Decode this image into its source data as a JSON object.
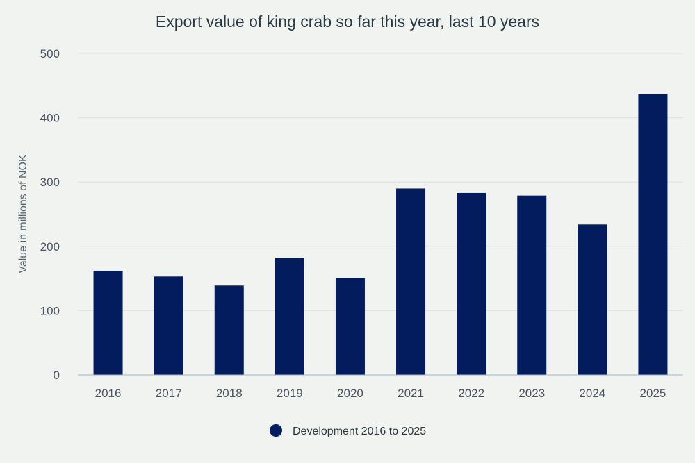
{
  "chart_data": {
    "type": "bar",
    "title": "Export value of king crab so far this year, last 10 years",
    "xlabel": "",
    "ylabel": "Value in millions of NOK",
    "categories": [
      "2016",
      "2017",
      "2018",
      "2019",
      "2020",
      "2021",
      "2022",
      "2023",
      "2024",
      "2025"
    ],
    "series": [
      {
        "name": "Development 2016 to 2025",
        "values": [
          162,
          153,
          139,
          182,
          151,
          290,
          283,
          279,
          234,
          437
        ]
      }
    ],
    "ylim": [
      0,
      500
    ],
    "yticks": [
      "0",
      "100",
      "200",
      "300",
      "400",
      "500"
    ],
    "grid": true,
    "legend_position": "bottom-center",
    "colors": {
      "bar": "#021c5e",
      "background": "#f1f3f1",
      "grid": "#dde2e2",
      "baseline": "#9fb3c8",
      "text": "#2c3a44"
    }
  }
}
